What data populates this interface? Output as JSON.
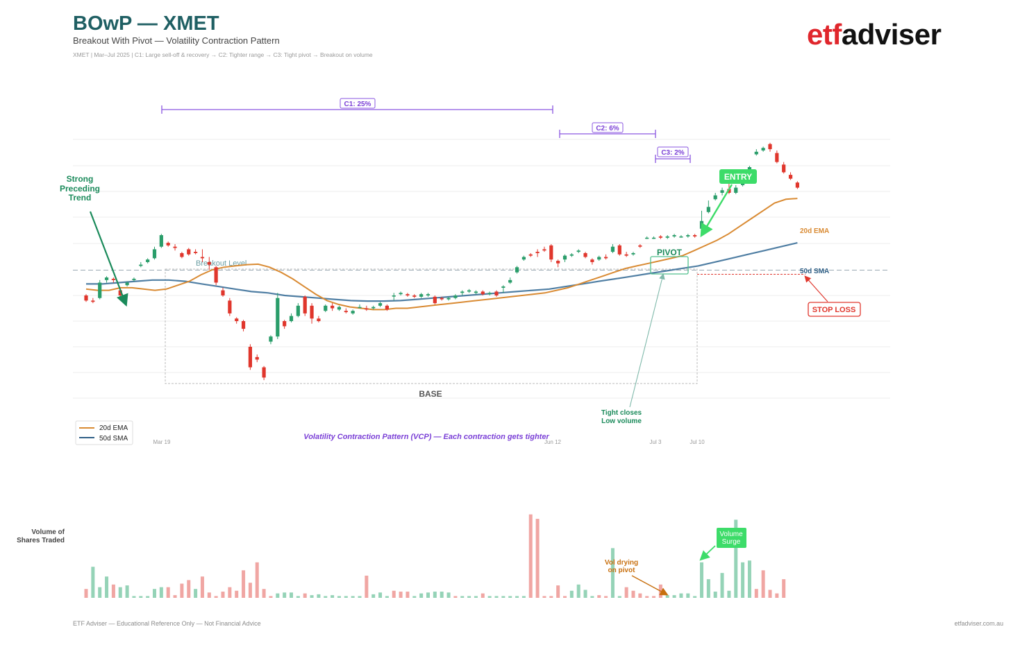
{
  "header": {
    "title": "BOwP — XMET",
    "subtitle": "Breakout With Pivot — Volatility Contraction Pattern",
    "meta": "XMET  |  Mar–Jul 2025  |  C1: Large sell-off & recovery  →  C2: Tighter range  →  C3: Tight pivot  →  Breakout on volume"
  },
  "logo": {
    "part1": "etf",
    "part2": "adviser"
  },
  "footer": {
    "left": "ETF Adviser — Educational Reference Only — Not Financial Advice",
    "right": "etfadviser.com.au"
  },
  "colors": {
    "up": "#2a9d6a",
    "down": "#e0362c",
    "ema": "#d98a32",
    "sma": "#4f7ea3",
    "vcp": "#7a3fd6",
    "entry": "#3ddc69",
    "stop": "#e0362c",
    "teal": "#1a8a5a",
    "vol_up": "#95d3b7",
    "vol_down": "#f0a6a3"
  },
  "annotations": {
    "c1": "C1: 25%",
    "c2": "C2: 6%",
    "c3": "C3: 2%",
    "trend_l1": "Strong",
    "trend_l2": "Preceding",
    "trend_l3": "Trend",
    "breakout_level": "Breakout Level",
    "pivot": "PIVOT",
    "entry": "ENTRY",
    "stop_loss": "STOP LOSS",
    "ema_label": "20d EMA",
    "sma_label": "50d SMA",
    "base": "BASE",
    "tight_l1": "Tight closes",
    "tight_l2": "Low volume",
    "vcp_caption": "Volatility Contraction Pattern (VCP) — Each contraction gets tighter",
    "vol_title_l1": "Volume of",
    "vol_title_l2": "Shares Traded",
    "vol_dry_l1": "Vol drying",
    "vol_dry_l2": "on pivot",
    "vol_surge_l1": "Volume",
    "vol_surge_l2": "Surge"
  },
  "legend": [
    {
      "label": "20d EMA"
    },
    {
      "label": "50d SMA"
    }
  ],
  "chart_data": {
    "type": "candlestick",
    "x_tick_labels": [
      {
        "label": "Mar 19",
        "index": 6
      },
      {
        "label": "Jun 12",
        "index": 65
      },
      {
        "label": "Jul 3",
        "index": 80
      },
      {
        "label": "Jul 10",
        "index": 86
      }
    ],
    "grid": true,
    "ylim": [
      0,
      10
    ],
    "breakout_level": 5.05,
    "stop_loss_level": 4.9,
    "candles": [
      [
        3.0,
        2.8,
        3.05,
        2.75
      ],
      [
        2.8,
        2.75,
        2.9,
        2.7
      ],
      [
        2.9,
        3.5,
        3.6,
        2.85
      ],
      [
        3.6,
        3.7,
        3.75,
        3.5
      ],
      [
        3.65,
        3.6,
        3.7,
        3.5
      ],
      [
        3.2,
        3.0,
        3.3,
        2.8
      ],
      [
        3.4,
        3.5,
        3.55,
        3.35
      ],
      [
        3.6,
        3.65,
        3.7,
        3.55
      ],
      [
        4.15,
        4.2,
        4.3,
        4.1
      ],
      [
        4.3,
        4.4,
        4.45,
        4.25
      ],
      [
        4.45,
        4.8,
        4.9,
        4.4
      ],
      [
        4.9,
        5.35,
        5.4,
        4.85
      ],
      [
        5.05,
        4.95,
        5.1,
        4.9
      ],
      [
        4.9,
        4.85,
        5.0,
        4.75
      ],
      [
        4.65,
        4.5,
        4.7,
        4.45
      ],
      [
        4.8,
        4.6,
        4.85,
        4.55
      ],
      [
        4.7,
        4.65,
        4.8,
        4.6
      ],
      [
        4.5,
        4.45,
        4.8,
        4.3
      ],
      [
        4.3,
        4.2,
        4.5,
        4.0
      ],
      [
        4.1,
        3.5,
        4.15,
        3.4
      ],
      [
        3.2,
        3.0,
        3.3,
        2.95
      ],
      [
        2.8,
        2.3,
        2.9,
        2.2
      ],
      [
        2.1,
        2.0,
        2.15,
        1.9
      ],
      [
        2.0,
        1.7,
        2.05,
        1.6
      ],
      [
        1.0,
        0.2,
        1.1,
        0.1
      ],
      [
        0.6,
        0.5,
        0.7,
        0.4
      ],
      [
        0.2,
        -0.2,
        0.25,
        -0.3
      ],
      [
        1.2,
        1.4,
        1.45,
        1.1
      ],
      [
        1.4,
        2.9,
        3.1,
        1.3
      ],
      [
        2.0,
        1.8,
        2.05,
        1.7
      ],
      [
        2.0,
        2.2,
        2.3,
        1.95
      ],
      [
        2.2,
        2.6,
        2.7,
        2.15
      ],
      [
        2.95,
        2.3,
        3.0,
        2.2
      ],
      [
        2.6,
        2.1,
        2.7,
        1.9
      ],
      [
        2.1,
        2.0,
        2.2,
        1.95
      ],
      [
        2.4,
        2.6,
        2.65,
        2.35
      ],
      [
        2.6,
        2.5,
        2.7,
        2.4
      ],
      [
        2.45,
        2.55,
        2.6,
        2.4
      ],
      [
        2.4,
        2.35,
        2.5,
        2.3
      ],
      [
        2.3,
        2.4,
        2.45,
        2.25
      ],
      [
        2.55,
        2.55,
        2.65,
        2.5
      ],
      [
        2.5,
        2.45,
        2.6,
        2.4
      ],
      [
        2.5,
        2.55,
        2.6,
        2.45
      ],
      [
        2.6,
        2.7,
        2.75,
        2.55
      ],
      [
        2.6,
        2.45,
        2.65,
        2.4
      ],
      [
        3.0,
        3.0,
        3.1,
        2.8
      ],
      [
        3.05,
        3.1,
        3.15,
        3.0
      ],
      [
        3.05,
        3.0,
        3.1,
        2.95
      ],
      [
        3.0,
        2.95,
        3.05,
        2.9
      ],
      [
        2.95,
        3.05,
        3.1,
        2.9
      ],
      [
        3.0,
        3.05,
        3.1,
        2.95
      ],
      [
        2.95,
        2.7,
        3.0,
        2.65
      ],
      [
        2.9,
        2.85,
        2.95,
        2.8
      ],
      [
        2.85,
        2.9,
        2.95,
        2.8
      ],
      [
        2.9,
        3.0,
        3.05,
        2.85
      ],
      [
        3.1,
        3.15,
        3.2,
        3.0
      ],
      [
        3.15,
        3.2,
        3.25,
        3.1
      ],
      [
        3.1,
        3.15,
        3.2,
        3.05
      ],
      [
        3.15,
        3.05,
        3.2,
        3.0
      ],
      [
        3.05,
        3.1,
        3.15,
        3.0
      ],
      [
        3.15,
        3.0,
        3.2,
        2.95
      ],
      [
        3.3,
        3.35,
        3.4,
        3.1
      ],
      [
        3.5,
        3.6,
        3.7,
        3.45
      ],
      [
        3.9,
        4.1,
        4.15,
        3.85
      ],
      [
        4.4,
        4.5,
        4.55,
        4.35
      ],
      [
        4.6,
        4.55,
        4.65,
        4.5
      ],
      [
        4.7,
        4.65,
        4.8,
        4.5
      ],
      [
        4.8,
        4.75,
        4.9,
        4.7
      ],
      [
        4.95,
        4.4,
        5.0,
        4.3
      ],
      [
        4.35,
        4.25,
        4.4,
        4.1
      ],
      [
        4.4,
        4.55,
        4.6,
        4.3
      ],
      [
        4.55,
        4.6,
        4.65,
        4.5
      ],
      [
        4.7,
        4.75,
        4.8,
        4.65
      ],
      [
        4.65,
        4.5,
        4.7,
        4.45
      ],
      [
        4.4,
        4.3,
        4.45,
        4.2
      ],
      [
        4.4,
        4.5,
        4.55,
        4.35
      ],
      [
        4.5,
        4.45,
        4.6,
        4.4
      ],
      [
        4.7,
        4.9,
        5.0,
        4.65
      ],
      [
        4.95,
        4.6,
        5.0,
        4.55
      ],
      [
        4.6,
        4.55,
        4.7,
        4.5
      ],
      [
        4.6,
        4.65,
        4.7,
        4.55
      ],
      [
        4.95,
        4.9,
        5.0,
        4.85
      ],
      [
        5.25,
        5.25,
        5.3,
        5.2
      ],
      [
        5.25,
        5.25,
        5.3,
        5.2
      ],
      [
        5.3,
        5.25,
        5.35,
        5.2
      ],
      [
        5.25,
        5.3,
        5.35,
        5.2
      ],
      [
        5.3,
        5.35,
        5.4,
        5.25
      ],
      [
        5.3,
        5.3,
        5.35,
        5.25
      ],
      [
        5.3,
        5.35,
        5.4,
        5.25
      ],
      [
        5.35,
        5.3,
        5.4,
        5.25
      ],
      [
        5.6,
        5.9,
        6.3,
        5.5
      ],
      [
        6.25,
        6.45,
        6.7,
        6.2
      ],
      [
        6.75,
        6.9,
        7.0,
        6.7
      ],
      [
        7.0,
        7.1,
        7.2,
        6.9
      ],
      [
        7.15,
        7.0,
        7.35,
        6.95
      ],
      [
        7.0,
        7.2,
        7.3,
        6.95
      ],
      [
        7.3,
        7.8,
        7.85,
        7.25
      ],
      [
        7.6,
        8.0,
        8.05,
        7.55
      ],
      [
        8.5,
        8.6,
        8.7,
        8.45
      ],
      [
        8.65,
        8.75,
        8.8,
        8.6
      ],
      [
        8.9,
        8.7,
        8.95,
        8.6
      ],
      [
        8.55,
        8.2,
        8.65,
        8.15
      ],
      [
        8.1,
        7.8,
        8.2,
        7.75
      ],
      [
        7.7,
        7.55,
        7.8,
        7.5
      ],
      [
        7.4,
        7.2,
        7.45,
        7.15
      ]
    ],
    "ema_20": [
      3.25,
      3.2,
      3.2,
      3.3,
      3.3,
      3.25,
      3.2,
      3.25,
      3.4,
      3.55,
      3.8,
      4.0,
      4.1,
      4.15,
      4.2,
      4.22,
      4.1,
      3.9,
      3.65,
      3.35,
      3.05,
      2.8,
      2.65,
      2.55,
      2.5,
      2.45,
      2.45,
      2.5,
      2.5,
      2.55,
      2.6,
      2.65,
      2.7,
      2.75,
      2.8,
      2.85,
      2.9,
      2.95,
      3.0,
      3.05,
      3.1,
      3.2,
      3.3,
      3.45,
      3.6,
      3.75,
      3.9,
      4.05,
      4.15,
      4.25,
      4.35,
      4.45,
      4.55,
      4.75,
      4.95,
      5.15,
      5.4,
      5.7,
      6.0,
      6.3,
      6.6,
      6.75,
      6.78
    ],
    "sma_50": [
      3.45,
      3.45,
      3.5,
      3.55,
      3.6,
      3.6,
      3.55,
      3.45,
      3.35,
      3.25,
      3.15,
      3.1,
      3.0,
      2.95,
      2.9,
      2.85,
      2.8,
      2.78,
      2.78,
      2.8,
      2.85,
      2.9,
      2.95,
      3.0,
      3.05,
      3.1,
      3.15,
      3.2,
      3.25,
      3.35,
      3.45,
      3.55,
      3.65,
      3.75,
      3.85,
      3.95,
      4.05,
      4.15,
      4.3,
      4.45,
      4.6,
      4.75,
      4.9,
      5.05
    ],
    "volume": [
      {
        "v": 10,
        "up": false
      },
      {
        "v": 35,
        "up": true
      },
      {
        "v": 12,
        "up": true
      },
      {
        "v": 24,
        "up": true
      },
      {
        "v": 15,
        "up": false
      },
      {
        "v": 12,
        "up": true
      },
      {
        "v": 14,
        "up": true
      },
      {
        "v": 2,
        "up": true
      },
      {
        "v": 2,
        "up": true
      },
      {
        "v": 2,
        "up": true
      },
      {
        "v": 10,
        "up": true
      },
      {
        "v": 12,
        "up": true
      },
      {
        "v": 12,
        "up": false
      },
      {
        "v": 3,
        "up": false
      },
      {
        "v": 16,
        "up": false
      },
      {
        "v": 20,
        "up": false
      },
      {
        "v": 10,
        "up": true
      },
      {
        "v": 24,
        "up": false
      },
      {
        "v": 6,
        "up": false
      },
      {
        "v": 2,
        "up": false
      },
      {
        "v": 7,
        "up": false
      },
      {
        "v": 12,
        "up": false
      },
      {
        "v": 8,
        "up": false
      },
      {
        "v": 31,
        "up": false
      },
      {
        "v": 17,
        "up": false
      },
      {
        "v": 40,
        "up": false
      },
      {
        "v": 10,
        "up": false
      },
      {
        "v": 2,
        "up": false
      },
      {
        "v": 5,
        "up": true
      },
      {
        "v": 6,
        "up": true
      },
      {
        "v": 6,
        "up": true
      },
      {
        "v": 2,
        "up": true
      },
      {
        "v": 5,
        "up": false
      },
      {
        "v": 3,
        "up": true
      },
      {
        "v": 4,
        "up": true
      },
      {
        "v": 2,
        "up": true
      },
      {
        "v": 3,
        "up": true
      },
      {
        "v": 2,
        "up": true
      },
      {
        "v": 2,
        "up": true
      },
      {
        "v": 2,
        "up": true
      },
      {
        "v": 2,
        "up": true
      },
      {
        "v": 25,
        "up": false
      },
      {
        "v": 4,
        "up": true
      },
      {
        "v": 6,
        "up": true
      },
      {
        "v": 2,
        "up": true
      },
      {
        "v": 8,
        "up": false
      },
      {
        "v": 7,
        "up": false
      },
      {
        "v": 7,
        "up": false
      },
      {
        "v": 2,
        "up": true
      },
      {
        "v": 5,
        "up": true
      },
      {
        "v": 6,
        "up": true
      },
      {
        "v": 7,
        "up": true
      },
      {
        "v": 7,
        "up": true
      },
      {
        "v": 6,
        "up": true
      },
      {
        "v": 2,
        "up": false
      },
      {
        "v": 2,
        "up": true
      },
      {
        "v": 2,
        "up": true
      },
      {
        "v": 2,
        "up": true
      },
      {
        "v": 5,
        "up": false
      },
      {
        "v": 2,
        "up": true
      },
      {
        "v": 2,
        "up": true
      },
      {
        "v": 2,
        "up": true
      },
      {
        "v": 2,
        "up": true
      },
      {
        "v": 2,
        "up": true
      },
      {
        "v": 2,
        "up": true
      },
      {
        "v": 94,
        "up": false
      },
      {
        "v": 89,
        "up": false
      },
      {
        "v": 2,
        "up": false
      },
      {
        "v": 2,
        "up": false
      },
      {
        "v": 14,
        "up": false
      },
      {
        "v": 2,
        "up": false
      },
      {
        "v": 8,
        "up": true
      },
      {
        "v": 15,
        "up": true
      },
      {
        "v": 9,
        "up": true
      },
      {
        "v": 2,
        "up": true
      },
      {
        "v": 3,
        "up": false
      },
      {
        "v": 2,
        "up": false
      },
      {
        "v": 56,
        "up": true
      },
      {
        "v": 2,
        "up": true
      },
      {
        "v": 12,
        "up": false
      },
      {
        "v": 8,
        "up": false
      },
      {
        "v": 5,
        "up": false
      },
      {
        "v": 2,
        "up": false
      },
      {
        "v": 2,
        "up": false
      },
      {
        "v": 15,
        "up": false
      },
      {
        "v": 3,
        "up": true
      },
      {
        "v": 3,
        "up": true
      },
      {
        "v": 5,
        "up": true
      },
      {
        "v": 5,
        "up": true
      },
      {
        "v": 2,
        "up": true
      },
      {
        "v": 40,
        "up": true
      },
      {
        "v": 21,
        "up": true
      },
      {
        "v": 7,
        "up": true
      },
      {
        "v": 28,
        "up": true
      },
      {
        "v": 8,
        "up": true
      },
      {
        "v": 88,
        "up": true
      },
      {
        "v": 40,
        "up": true
      },
      {
        "v": 42,
        "up": true
      },
      {
        "v": 10,
        "up": false
      },
      {
        "v": 31,
        "up": false
      },
      {
        "v": 9,
        "up": false
      },
      {
        "v": 5,
        "up": false
      },
      {
        "v": 21,
        "up": false
      }
    ]
  }
}
